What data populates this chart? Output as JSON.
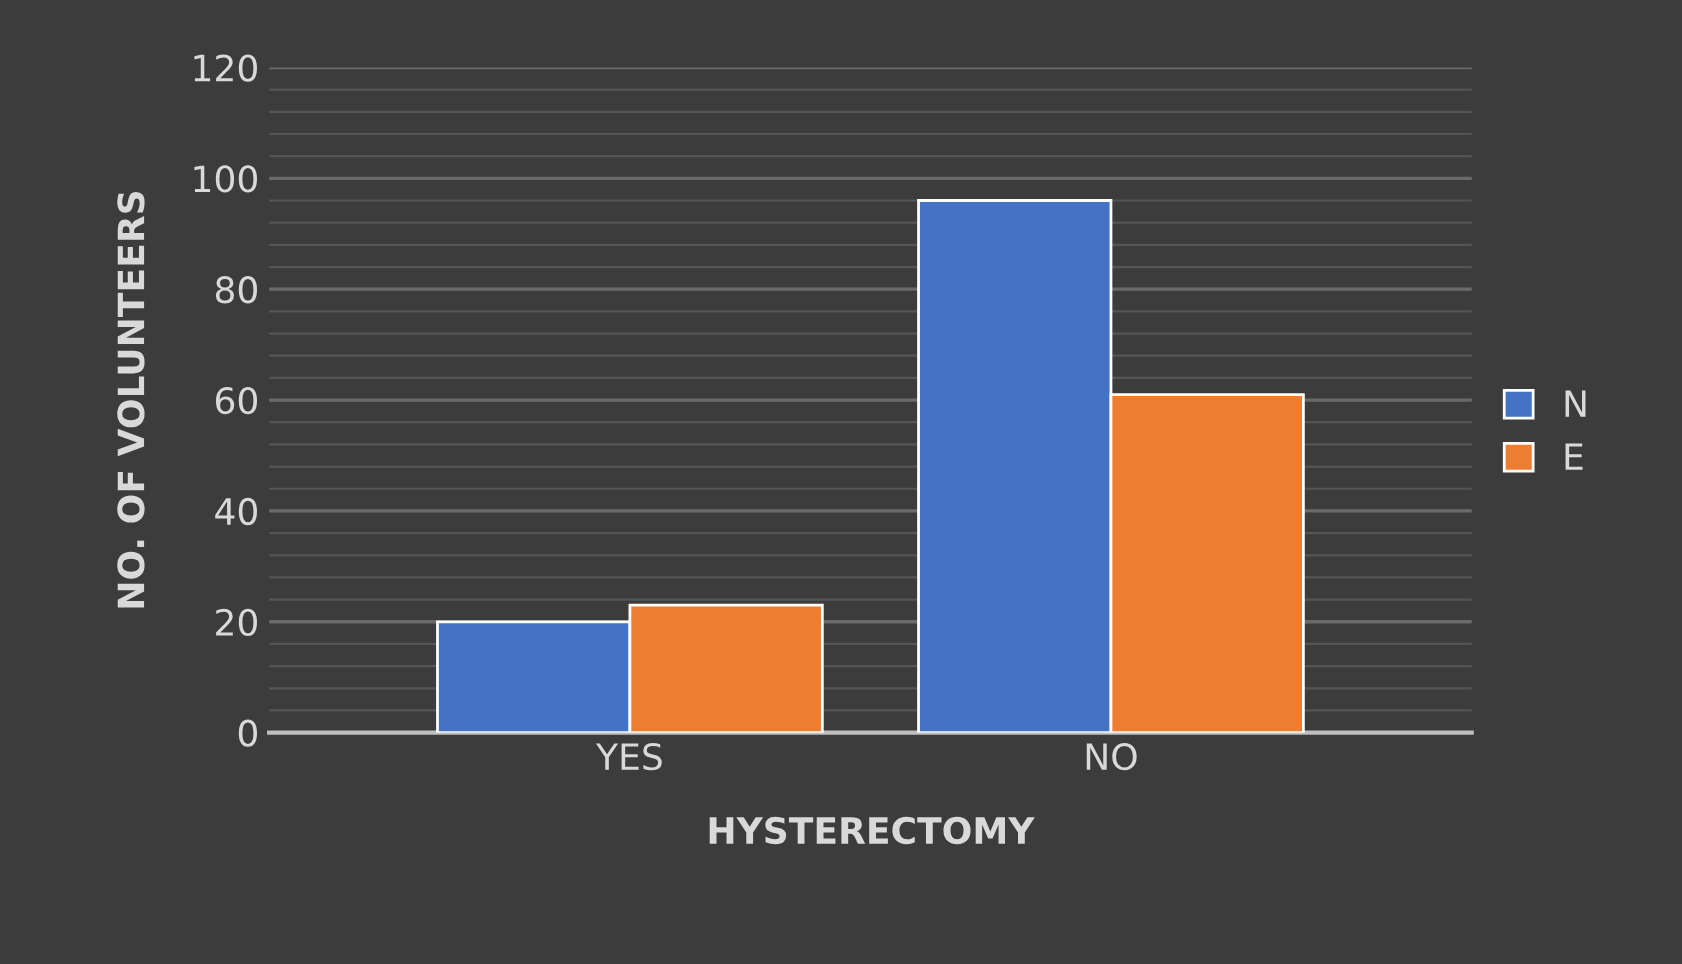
{
  "chart_data": {
    "type": "bar",
    "xlabel": "HYSTERECTOMY",
    "ylabel": "NO. OF VOLUNTEERS",
    "categories": [
      "YES",
      "NO"
    ],
    "series": [
      {
        "name": "N",
        "color": "#4472c4",
        "values": [
          20,
          96
        ]
      },
      {
        "name": "E",
        "color": "#ed7d31",
        "values": [
          23,
          61
        ]
      }
    ],
    "ylim": [
      0,
      120
    ],
    "yticks": [
      0,
      20,
      40,
      60,
      80,
      100,
      120
    ],
    "grid": "y",
    "legend": "right"
  }
}
